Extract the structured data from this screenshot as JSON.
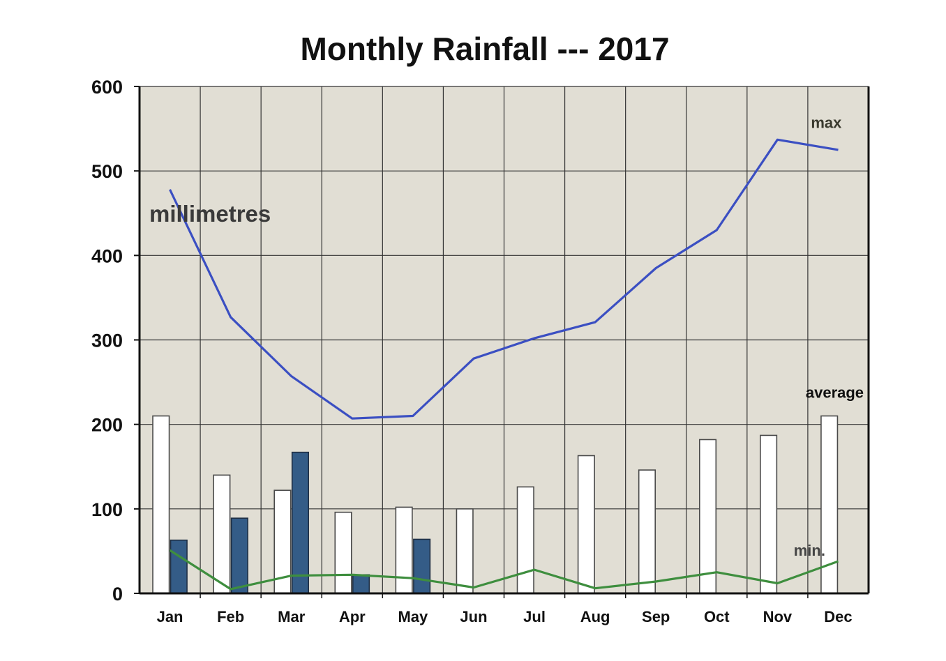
{
  "chart_data": {
    "type": "bar",
    "title": "Monthly Rainfall --- 2017",
    "ylabel": "millimetres",
    "xlabel": "",
    "ylim": [
      0,
      600
    ],
    "yticks": [
      0,
      100,
      200,
      300,
      400,
      500,
      600
    ],
    "grid": true,
    "categories": [
      "Jan",
      "Feb",
      "Mar",
      "Apr",
      "May",
      "Jun",
      "Jul",
      "Aug",
      "Sep",
      "Oct",
      "Nov",
      "Dec"
    ],
    "series": [
      {
        "name": "average",
        "type": "bar",
        "color": "#ffffff",
        "values": [
          210,
          140,
          122,
          96,
          102,
          100,
          126,
          163,
          146,
          182,
          187,
          210
        ]
      },
      {
        "type": "bar",
        "color": "#345c87",
        "values": [
          63,
          89,
          167,
          22,
          64,
          null,
          null,
          null,
          null,
          null,
          null,
          null
        ]
      },
      {
        "name": "max",
        "type": "line",
        "color": "#3b4fc2",
        "values": [
          478,
          327,
          257,
          207,
          210,
          278,
          302,
          321,
          385,
          430,
          537,
          525
        ]
      },
      {
        "name": "min.",
        "type": "line",
        "color": "#3e8e3e",
        "values": [
          51,
          5,
          21,
          22,
          18,
          7,
          28,
          6,
          14,
          25,
          12,
          38
        ]
      }
    ]
  },
  "colors": {
    "plot_background": "#e1ded4",
    "grid": "#333333",
    "bar_outline": "#1f2f44"
  }
}
